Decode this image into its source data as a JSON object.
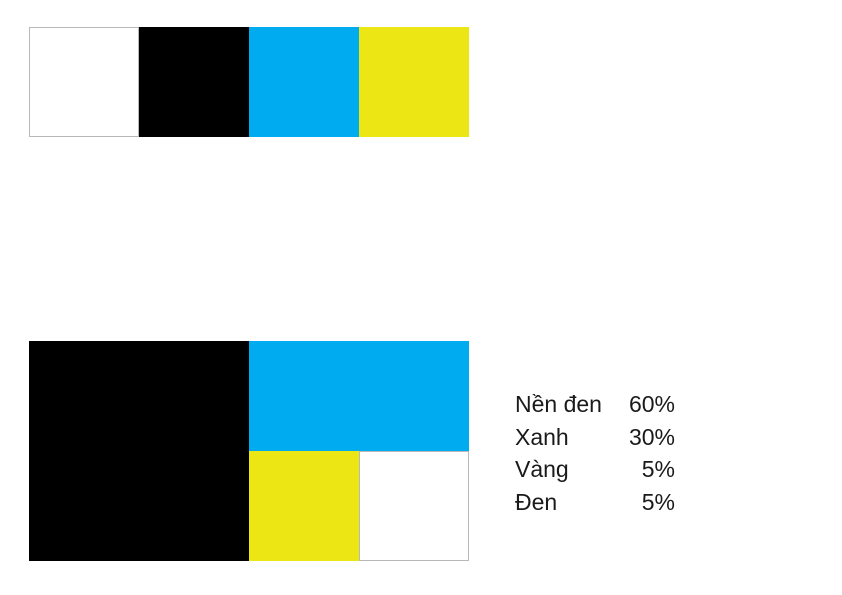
{
  "colors": {
    "white": "#ffffff",
    "black": "#000000",
    "blue": "#00acef",
    "yellow": "#ebe614"
  },
  "palette": [
    {
      "color": "#ffffff"
    },
    {
      "color": "#000000"
    },
    {
      "color": "#00acef"
    },
    {
      "color": "#ebe614"
    }
  ],
  "composition": [
    {
      "label": "Nền đen",
      "percent": "60%",
      "color": "#000000"
    },
    {
      "label": "Xanh",
      "percent": "30%",
      "color": "#00acef"
    },
    {
      "label": "Vàng",
      "percent": "5%",
      "color": "#ebe614"
    },
    {
      "label": "Đen",
      "percent": "5%",
      "color": "#ffffff"
    }
  ]
}
